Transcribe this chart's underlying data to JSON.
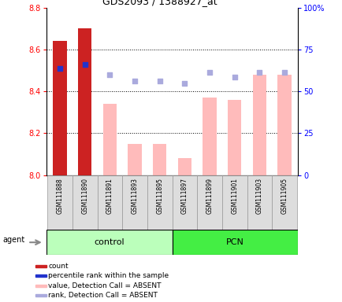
{
  "title": "GDS2093 / 1388927_at",
  "samples": [
    "GSM111888",
    "GSM111890",
    "GSM111891",
    "GSM111893",
    "GSM111895",
    "GSM111897",
    "GSM111899",
    "GSM111901",
    "GSM111903",
    "GSM111905"
  ],
  "bar_values": [
    8.64,
    8.7,
    8.34,
    8.15,
    8.15,
    8.08,
    8.37,
    8.36,
    8.48,
    8.48
  ],
  "bar_colors": [
    "#cc2222",
    "#cc2222",
    "#ffbbbb",
    "#ffbbbb",
    "#ffbbbb",
    "#ffbbbb",
    "#ffbbbb",
    "#ffbbbb",
    "#ffbbbb",
    "#ffbbbb"
  ],
  "rank_values": [
    8.51,
    8.53,
    8.48,
    8.45,
    8.45,
    8.44,
    8.49,
    8.47,
    8.49,
    8.49
  ],
  "rank_colors": [
    "#2233cc",
    "#2233cc",
    "#aaaadd",
    "#aaaadd",
    "#aaaadd",
    "#aaaadd",
    "#aaaadd",
    "#aaaadd",
    "#aaaadd",
    "#aaaadd"
  ],
  "ymin": 8.0,
  "ymax": 8.8,
  "y2min": 0,
  "y2max": 100,
  "yticks": [
    8.0,
    8.2,
    8.4,
    8.6,
    8.8
  ],
  "y2ticks": [
    0,
    25,
    50,
    75,
    100
  ],
  "y2ticklabels": [
    "0",
    "25",
    "50",
    "75",
    "100%"
  ],
  "grid_lines": [
    8.2,
    8.4,
    8.6
  ],
  "control_label": "control",
  "pcn_label": "PCN",
  "agent_label": "agent",
  "control_color": "#bbffbb",
  "pcn_color": "#44ee44",
  "legend_items": [
    {
      "color": "#cc2222",
      "label": "count"
    },
    {
      "color": "#2233cc",
      "label": "percentile rank within the sample"
    },
    {
      "color": "#ffbbbb",
      "label": "value, Detection Call = ABSENT"
    },
    {
      "color": "#aaaadd",
      "label": "rank, Detection Call = ABSENT"
    }
  ],
  "bar_width": 0.55
}
